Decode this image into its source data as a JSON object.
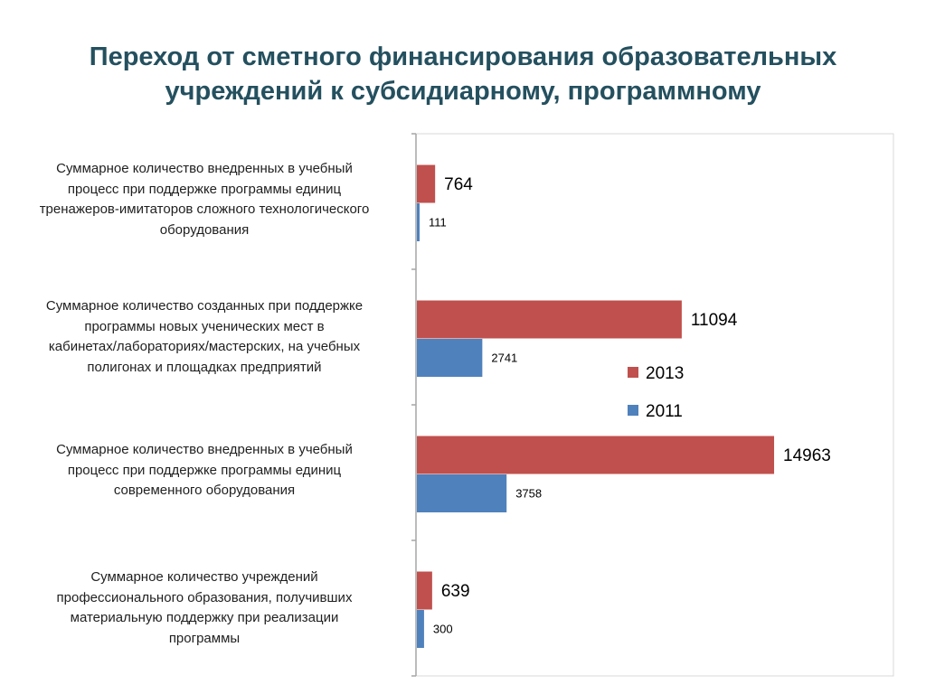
{
  "title_lines": [
    "Переход от сметного финансирования образовательных",
    "учреждений к субсидиарному, программному"
  ],
  "chart_data": {
    "type": "bar",
    "orientation": "horizontal",
    "categories": [
      "Суммарное количество внедренных в учебный процесс при поддержке программы единиц тренажеров-имитаторов сложного технологического оборудования",
      "Суммарное количество созданных при поддержке программы новых ученических мест в кабинетах/лабораториях/мастерских, на  учебных полигонах и площадках предприятий",
      "Суммарное количество внедренных в учебный процесс при поддержке программы единиц современного оборудования",
      "Суммарное количество учреждений профессионального образования, получивших материальную поддержку при реализации программы"
    ],
    "category_lines": [
      [
        "Суммарное количество внедренных в учебный",
        "процесс при поддержке программы единиц",
        "тренажеров-имитаторов сложного технологического",
        "оборудования"
      ],
      [
        "Суммарное количество созданных при поддержке",
        "программы новых ученических мест в",
        "кабинетах/лабораториях/мастерских, на  учебных",
        "полигонах и площадках предприятий"
      ],
      [
        "Суммарное количество внедренных в учебный",
        "процесс при поддержке программы единиц",
        "современного оборудования"
      ],
      [
        "Суммарное количество учреждений",
        "профессионального образования, получивших",
        "материальную поддержку при реализации",
        "программы"
      ]
    ],
    "series": [
      {
        "name": "2013",
        "values": [
          764,
          11094,
          14963,
          639
        ],
        "color": "#c0504d"
      },
      {
        "name": "2011",
        "values": [
          111,
          2741,
          3758,
          300
        ],
        "color": "#4f81bd"
      }
    ],
    "xlim": [
      0,
      20000
    ],
    "grid": false,
    "legend_position": "center-right"
  }
}
